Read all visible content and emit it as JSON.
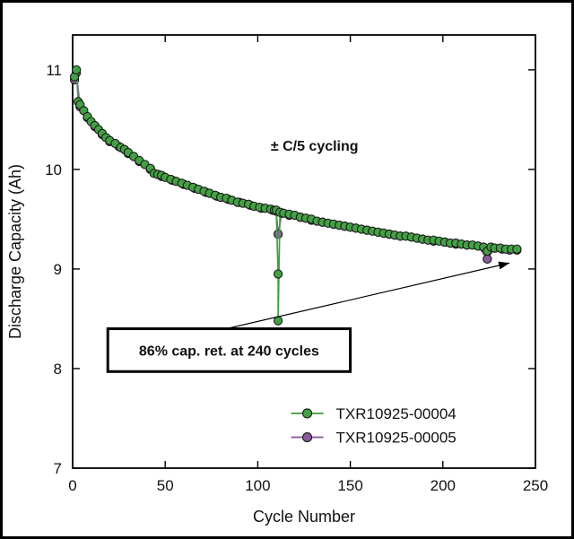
{
  "figure": {
    "background": "#ffffff",
    "frame_color": "#000000"
  },
  "chart_data": {
    "type": "line",
    "title": "",
    "xlabel": "Cycle Number",
    "ylabel": "Discharge Capacity (Ah)",
    "xlim": [
      0,
      250
    ],
    "ylim": [
      7,
      11.35
    ],
    "xticks": [
      0,
      50,
      100,
      150,
      200,
      250
    ],
    "yticks": [
      7,
      8,
      9,
      10,
      11
    ],
    "grid": false,
    "legend_position": "lower-right",
    "marker": "circle",
    "series": [
      {
        "name": "TXR10925-00004",
        "color": "#44a044",
        "edge_color": "#1a1a1a",
        "x": [
          1,
          2,
          3,
          4,
          6,
          8,
          10,
          12,
          14,
          16,
          18,
          20,
          23,
          26,
          28,
          30,
          33,
          36,
          39,
          42,
          44,
          46,
          48,
          50,
          53,
          56,
          59,
          62,
          65,
          68,
          71,
          74,
          77,
          80,
          83,
          86,
          89,
          92,
          95,
          98,
          101,
          104,
          107,
          109,
          110,
          111,
          111,
          112,
          114,
          117,
          120,
          123,
          126,
          129,
          132,
          135,
          138,
          141,
          144,
          147,
          150,
          153,
          156,
          159,
          162,
          165,
          168,
          171,
          174,
          177,
          180,
          183,
          186,
          189,
          192,
          195,
          198,
          201,
          204,
          207,
          210,
          213,
          216,
          219,
          222,
          224,
          226,
          228,
          231,
          234,
          237,
          240
        ],
        "y": [
          10.93,
          11.0,
          10.68,
          10.65,
          10.59,
          10.53,
          10.48,
          10.44,
          10.4,
          10.36,
          10.32,
          10.29,
          10.26,
          10.22,
          10.2,
          10.17,
          10.13,
          10.09,
          10.05,
          10.01,
          9.96,
          9.95,
          9.94,
          9.92,
          9.9,
          9.88,
          9.86,
          9.84,
          9.82,
          9.8,
          9.78,
          9.76,
          9.74,
          9.72,
          9.71,
          9.69,
          9.67,
          9.66,
          9.65,
          9.63,
          9.62,
          9.61,
          9.6,
          9.59,
          9.59,
          8.95,
          8.48,
          9.57,
          9.56,
          9.55,
          9.54,
          9.52,
          9.51,
          9.5,
          9.48,
          9.47,
          9.46,
          9.45,
          9.44,
          9.43,
          9.42,
          9.41,
          9.4,
          9.39,
          9.38,
          9.37,
          9.36,
          9.35,
          9.34,
          9.33,
          9.33,
          9.32,
          9.31,
          9.3,
          9.29,
          9.29,
          9.28,
          9.27,
          9.26,
          9.26,
          9.25,
          9.24,
          9.24,
          9.23,
          9.22,
          9.18,
          9.22,
          9.21,
          9.21,
          9.2,
          9.2,
          9.2
        ]
      },
      {
        "name": "TXR10925-00005",
        "color": "#8a5a9b",
        "edge_color": "#1a1a1a",
        "x": [
          1,
          2,
          4,
          8,
          12,
          16,
          20,
          25,
          30,
          36,
          42,
          48,
          54,
          60,
          66,
          72,
          78,
          84,
          90,
          96,
          102,
          108,
          110,
          111,
          113,
          117,
          123,
          129,
          135,
          141,
          147,
          153,
          159,
          165,
          171,
          177,
          183,
          189,
          195,
          201,
          207,
          213,
          219,
          224,
          228,
          232,
          236,
          240
        ],
        "y": [
          10.9,
          10.97,
          10.63,
          10.52,
          10.43,
          10.35,
          10.28,
          10.23,
          10.16,
          10.08,
          10.0,
          9.93,
          9.89,
          9.85,
          9.81,
          9.77,
          9.73,
          9.7,
          9.67,
          9.64,
          9.61,
          9.59,
          9.58,
          9.35,
          9.56,
          9.54,
          9.52,
          9.49,
          9.47,
          9.45,
          9.43,
          9.41,
          9.39,
          9.37,
          9.35,
          9.33,
          9.32,
          9.3,
          9.28,
          9.27,
          9.25,
          9.24,
          9.23,
          9.1,
          9.21,
          9.2,
          9.19,
          9.19
        ]
      }
    ],
    "annotations": {
      "cycling_label": {
        "text": "± C/5 cycling",
        "x": 107,
        "y": 10.19
      },
      "retention_box": {
        "text": "86% cap. ret. at 240 cycles",
        "x1": 19,
        "y1": 7.97,
        "x2": 150,
        "y2": 8.4
      },
      "arrow": {
        "x1": 83,
        "y1": 8.4,
        "x2": 236,
        "y2": 9.06
      }
    }
  }
}
